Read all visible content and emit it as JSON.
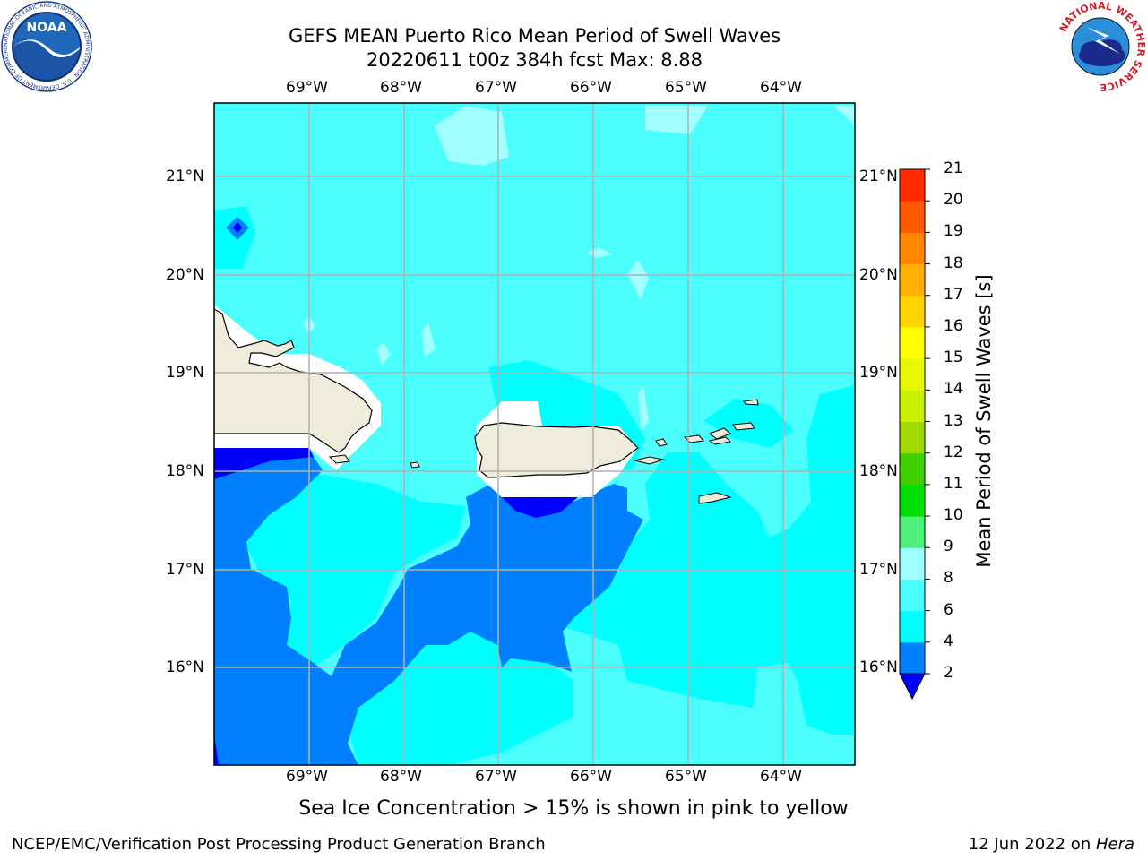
{
  "title": {
    "line1": "GEFS MEAN Puerto Rico Mean Period of Swell Waves",
    "line2": "20220611 t00z 384h fcst   Max: 8.88"
  },
  "map": {
    "lon_range": [
      -70.0,
      -63.25
    ],
    "lat_range": [
      15.0,
      21.75
    ],
    "lon_ticks": [
      "69°W",
      "68°W",
      "67°W",
      "66°W",
      "65°W",
      "64°W"
    ],
    "lat_ticks": [
      "21°N",
      "20°N",
      "19°N",
      "18°N",
      "17°N",
      "16°N"
    ],
    "grid": true
  },
  "colorbar": {
    "label": "Mean Period of Swell Waves [s]",
    "ticks": [
      "2",
      "4",
      "6",
      "8",
      "9",
      "10",
      "11",
      "12",
      "13",
      "14",
      "15",
      "16",
      "17",
      "18",
      "19",
      "20",
      "21"
    ],
    "colors": [
      "#0080ff",
      "#00ffff",
      "#4cffff",
      "#a0ffff",
      "#4cf07a",
      "#00e000",
      "#40d000",
      "#a0d800",
      "#c8f000",
      "#e8f800",
      "#ffff00",
      "#ffd400",
      "#ffb000",
      "#ff8800",
      "#ff5a00",
      "#ff2a00"
    ],
    "under_color": "#0000ff"
  },
  "caption": "Sea Ice Concentration > 15% is shown in pink to yellow",
  "footer": {
    "left": "NCEP/EMC/Verification Post Processing Product Generation Branch",
    "right_date": "12 Jun 2022 on ",
    "right_host": "Hera"
  },
  "logos": {
    "noaa_text": "NOAA",
    "noaa_ring_text": "NATIONAL OCEANIC AND ATMOSPHERIC ADMINISTRATION · U.S. DEPARTMENT OF COMMERCE",
    "nws_ring_text": "NATIONAL WEATHER SERVICE"
  }
}
